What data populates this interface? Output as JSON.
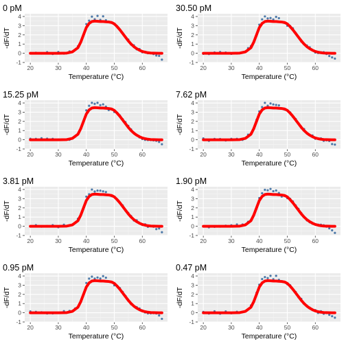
{
  "chart_data": {
    "type": "scatter",
    "layout": "4x2 grid of small multiples",
    "xlabel": "Temperature (°C)",
    "ylabel": "-dF/dT",
    "xlim": [
      18,
      69
    ],
    "ylim": [
      -1,
      4.3
    ],
    "xticks": [
      20,
      30,
      40,
      50,
      60,
      70
    ],
    "yticks": [
      -1,
      0,
      1,
      2,
      3,
      4
    ],
    "series_styles": {
      "observed": {
        "mark": "point",
        "color": "#4b78a8"
      },
      "fitted": {
        "mark": "thick line",
        "color": "#ff0000"
      }
    },
    "fit_curve": {
      "x": [
        20,
        30,
        33,
        35,
        37,
        38,
        39,
        40,
        41,
        42,
        43,
        44,
        45,
        46,
        47,
        48,
        49,
        50,
        51,
        52,
        53,
        54,
        55,
        56,
        57,
        58,
        59,
        60,
        61,
        62,
        63,
        64,
        65,
        66,
        67
      ],
      "y": [
        0,
        0,
        0.02,
        0.15,
        0.6,
        1.2,
        2.0,
        2.8,
        3.25,
        3.45,
        3.5,
        3.48,
        3.45,
        3.45,
        3.42,
        3.4,
        3.35,
        3.2,
        2.9,
        2.55,
        2.15,
        1.75,
        1.35,
        1.0,
        0.72,
        0.5,
        0.33,
        0.2,
        0.12,
        0.06,
        0.03,
        0.02,
        0.01,
        0,
        0
      ]
    },
    "observed_points": {
      "x": [
        20,
        22,
        24,
        26,
        28,
        30,
        32,
        34,
        36,
        37,
        38,
        39,
        40,
        41,
        42,
        43,
        44,
        45,
        46,
        47,
        48,
        49,
        50,
        51,
        52,
        53,
        54,
        55,
        56,
        57,
        58,
        59,
        60,
        61,
        62,
        63,
        64,
        65,
        66,
        67
      ],
      "y": [
        0.05,
        0,
        0.05,
        0.02,
        0.04,
        0.02,
        0.08,
        0.1,
        0.45,
        0.7,
        1.25,
        2.05,
        3.15,
        3.6,
        3.9,
        3.8,
        3.95,
        3.75,
        3.9,
        3.7,
        3.35,
        3.4,
        3.1,
        2.95,
        2.6,
        2.15,
        1.8,
        1.4,
        1.05,
        0.75,
        0.55,
        0.35,
        0.2,
        0.1,
        0.05,
        0.0,
        -0.1,
        -0.2,
        -0.35,
        -0.6
      ]
    },
    "panels": [
      {
        "title": "0 pM"
      },
      {
        "title": "30.50 pM"
      },
      {
        "title": "15.25 pM"
      },
      {
        "title": "7.62 pM"
      },
      {
        "title": "3.81 pM"
      },
      {
        "title": "1.90 pM"
      },
      {
        "title": "0.95 pM"
      },
      {
        "title": "0.47 pM"
      }
    ]
  }
}
